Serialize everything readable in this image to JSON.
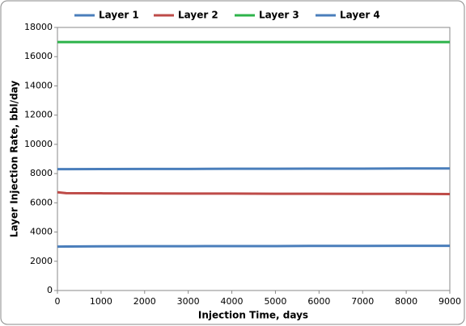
{
  "chart_data": {
    "type": "line",
    "xlabel": "Injection Time, days",
    "ylabel": "Layer Injection Rate, bbl/day",
    "x": [
      0,
      200,
      1000,
      2000,
      3000,
      4000,
      5000,
      6000,
      7000,
      8000,
      9000
    ],
    "series": [
      {
        "name": "Layer 1",
        "color": "#4a7ebb",
        "values": [
          3000,
          3010,
          3020,
          3030,
          3030,
          3040,
          3040,
          3050,
          3050,
          3060,
          3060
        ]
      },
      {
        "name": "Layer 2",
        "color": "#be4b48",
        "values": [
          6720,
          6660,
          6650,
          6640,
          6630,
          6630,
          6620,
          6620,
          6610,
          6610,
          6600
        ]
      },
      {
        "name": "Layer 3",
        "color": "#2db34a",
        "values": [
          17000,
          17000,
          17000,
          17000,
          17000,
          17000,
          17000,
          17000,
          17000,
          17000,
          17000
        ]
      },
      {
        "name": "Layer 4",
        "color": "#4a7ebb",
        "values": [
          8300,
          8300,
          8310,
          8320,
          8320,
          8330,
          8330,
          8340,
          8340,
          8350,
          8350
        ]
      }
    ],
    "xlim": [
      0,
      9000
    ],
    "xticks": [
      0,
      1000,
      2000,
      3000,
      4000,
      5000,
      6000,
      7000,
      8000,
      9000
    ],
    "ylim": [
      0,
      18000
    ],
    "yticks": [
      0,
      2000,
      4000,
      6000,
      8000,
      10000,
      12000,
      14000,
      16000,
      18000
    ],
    "grid": false,
    "legend": "top"
  }
}
